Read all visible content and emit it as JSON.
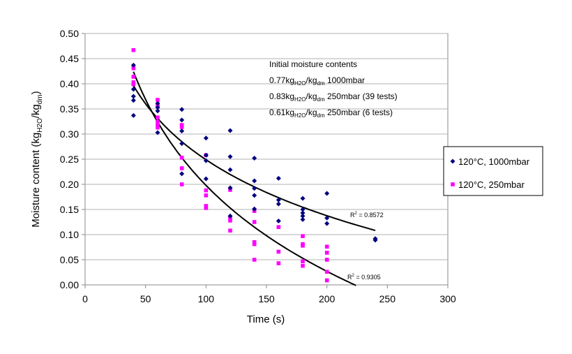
{
  "chart_data": {
    "type": "scatter",
    "title": "",
    "xlabel": "Time (s)",
    "ylabel_main": "Moisture content (kg",
    "ylabel_sub1": "H2O",
    "ylabel_mid": "/kg",
    "ylabel_sub2": "dm",
    "ylabel_end": ")",
    "xlim": [
      0,
      300
    ],
    "ylim": [
      0,
      0.5
    ],
    "xticks": [
      0,
      50,
      100,
      150,
      200,
      250,
      300
    ],
    "yticks": [
      "0.00",
      "0.05",
      "0.10",
      "0.15",
      "0.20",
      "0.25",
      "0.30",
      "0.35",
      "0.40",
      "0.45",
      "0.50"
    ],
    "grid": "horizontal",
    "legend_position": "right",
    "series": [
      {
        "name": "120°C, 1000mbar",
        "color": "#000080",
        "marker": "diamond",
        "points": [
          [
            40,
            0.437
          ],
          [
            40,
            0.389
          ],
          [
            40,
            0.375
          ],
          [
            40,
            0.367
          ],
          [
            40,
            0.337
          ],
          [
            60,
            0.361
          ],
          [
            60,
            0.353
          ],
          [
            60,
            0.346
          ],
          [
            60,
            0.303
          ],
          [
            80,
            0.349
          ],
          [
            80,
            0.328
          ],
          [
            80,
            0.306
          ],
          [
            80,
            0.281
          ],
          [
            80,
            0.221
          ],
          [
            100,
            0.292
          ],
          [
            100,
            0.258
          ],
          [
            100,
            0.247
          ],
          [
            100,
            0.211
          ],
          [
            120,
            0.307
          ],
          [
            120,
            0.255
          ],
          [
            120,
            0.229
          ],
          [
            120,
            0.193
          ],
          [
            120,
            0.137
          ],
          [
            140,
            0.252
          ],
          [
            140,
            0.207
          ],
          [
            140,
            0.192
          ],
          [
            140,
            0.178
          ],
          [
            140,
            0.151
          ],
          [
            160,
            0.212
          ],
          [
            160,
            0.169
          ],
          [
            160,
            0.161
          ],
          [
            160,
            0.127
          ],
          [
            180,
            0.172
          ],
          [
            180,
            0.15
          ],
          [
            180,
            0.143
          ],
          [
            180,
            0.137
          ],
          [
            180,
            0.13
          ],
          [
            200,
            0.182
          ],
          [
            200,
            0.133
          ],
          [
            200,
            0.122
          ],
          [
            240,
            0.092
          ],
          [
            240,
            0.089
          ]
        ],
        "trend": {
          "type": "logarithmic",
          "a": 0.989,
          "b": -0.1607,
          "x_range": [
            40,
            240
          ],
          "r2_label": "R",
          "r2_value": " = 0.8572"
        }
      },
      {
        "name": "120°C, 250mbar",
        "color": "#FF00FF",
        "marker": "square",
        "points": [
          [
            40,
            0.467
          ],
          [
            40,
            0.431
          ],
          [
            40,
            0.414
          ],
          [
            40,
            0.403
          ],
          [
            40,
            0.399
          ],
          [
            60,
            0.368
          ],
          [
            60,
            0.356
          ],
          [
            60,
            0.333
          ],
          [
            60,
            0.324
          ],
          [
            60,
            0.318
          ],
          [
            60,
            0.313
          ],
          [
            80,
            0.318
          ],
          [
            80,
            0.314
          ],
          [
            80,
            0.253
          ],
          [
            80,
            0.232
          ],
          [
            80,
            0.2
          ],
          [
            100,
            0.258
          ],
          [
            100,
            0.188
          ],
          [
            100,
            0.178
          ],
          [
            100,
            0.157
          ],
          [
            100,
            0.153
          ],
          [
            120,
            0.189
          ],
          [
            120,
            0.133
          ],
          [
            120,
            0.128
          ],
          [
            120,
            0.108
          ],
          [
            140,
            0.147
          ],
          [
            140,
            0.125
          ],
          [
            140,
            0.085
          ],
          [
            140,
            0.081
          ],
          [
            140,
            0.05
          ],
          [
            160,
            0.115
          ],
          [
            160,
            0.066
          ],
          [
            160,
            0.043
          ],
          [
            180,
            0.097
          ],
          [
            180,
            0.081
          ],
          [
            180,
            0.078
          ],
          [
            180,
            0.047
          ],
          [
            180,
            0.038
          ],
          [
            200,
            0.076
          ],
          [
            200,
            0.064
          ],
          [
            200,
            0.05
          ],
          [
            200,
            0.026
          ],
          [
            200,
            0.009
          ]
        ],
        "trend": {
          "type": "logarithmic",
          "a": 1.334,
          "b": -0.2467,
          "x_range": [
            40,
            224
          ],
          "r2_label": "R",
          "r2_value": " = 0.9305"
        }
      }
    ],
    "annotation": {
      "title": "Initial moisture contents",
      "lines": [
        {
          "value": "0.77kg",
          "sub1": "H2O",
          "mid": "/kg",
          "sub2": "dm",
          "rest": " 1000mbar"
        },
        {
          "value": "0.83kg",
          "sub1": "H2O",
          "mid": "/kg",
          "sub2": "dm",
          "rest": " 250mbar  (39 tests)"
        },
        {
          "value": "0.61kg",
          "sub1": "H2O",
          "mid": "/kg",
          "sub2": "dm",
          "rest": " 250mbar  (6 tests)"
        }
      ]
    }
  }
}
